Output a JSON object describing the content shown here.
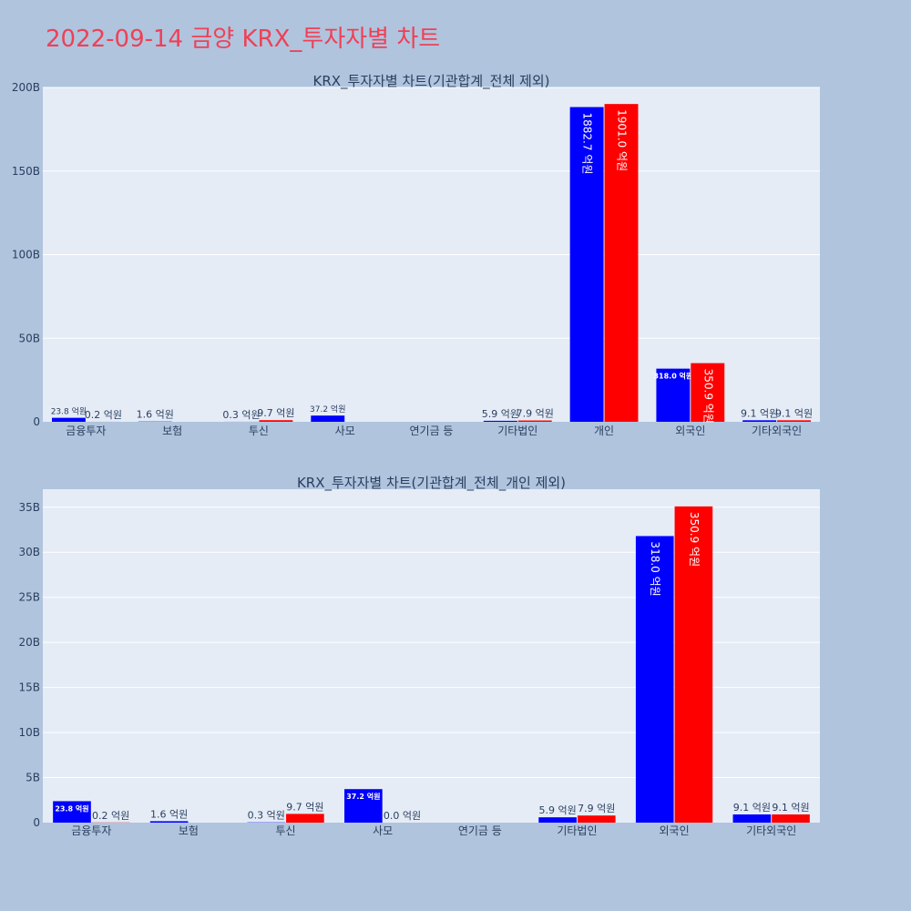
{
  "page": {
    "title": "2022-09-14 금양 KRX_투자자별 차트"
  },
  "colors": {
    "buy": "#0000ff",
    "sell": "#ff0000",
    "plot_bg": "#e5ecf6",
    "title": "#ef4056"
  },
  "chart_data": [
    {
      "type": "bar",
      "title": "KRX_투자자별 차트(기관합계_전체 제외)",
      "categories": [
        "금융투자",
        "보험",
        "투신",
        "사모",
        "연기금 등",
        "기타법인",
        "개인",
        "외국인",
        "기타외국인"
      ],
      "series": [
        {
          "color": "#0000ff",
          "values": [
            2.38,
            0.16,
            0.03,
            3.72,
            0,
            0.59,
            188.27,
            31.8,
            0.91
          ],
          "labels": [
            "23.8 억원",
            "1.6 억원",
            "0.3 억원",
            "37.2 억원",
            "",
            "5.9 억원",
            "1882.7 억원",
            "318.0 억원",
            "9.1 억원"
          ]
        },
        {
          "color": "#ff0000",
          "values": [
            0.02,
            0,
            0.97,
            0,
            0,
            0.79,
            190.1,
            35.09,
            0.91
          ],
          "labels": [
            "0.2 억원",
            "",
            "9.7 억원",
            "",
            "",
            "7.9 억원",
            "1901.0 억원",
            "350.9 억원",
            "9.1 억원"
          ]
        }
      ],
      "ylim": [
        0,
        200
      ],
      "yticks": [
        0,
        50,
        100,
        150,
        200
      ],
      "ytick_labels": [
        "0",
        "50B",
        "100B",
        "150B",
        "200B"
      ],
      "grid": true
    },
    {
      "type": "bar",
      "title": "KRX_투자자별 차트(기관합계_전체_개인 제외)",
      "categories": [
        "금융투자",
        "보험",
        "투신",
        "사모",
        "연기금 등",
        "기타법인",
        "외국인",
        "기타외국인"
      ],
      "series": [
        {
          "color": "#0000ff",
          "values": [
            2.38,
            0.16,
            0.03,
            3.72,
            0,
            0.59,
            31.8,
            0.91
          ],
          "labels": [
            "23.8 억원",
            "1.6 억원",
            "0.3 억원",
            "37.2 억원",
            "",
            "5.9 억원",
            "318.0 억원",
            "9.1 억원"
          ]
        },
        {
          "color": "#ff0000",
          "values": [
            0.02,
            0,
            0.97,
            0,
            0,
            0.79,
            35.09,
            0.91
          ],
          "labels": [
            "0.2 억원",
            "",
            "9.7 억원",
            "0.0 억원",
            "",
            "7.9 억원",
            "350.9 억원",
            "9.1 억원"
          ]
        }
      ],
      "ylim": [
        0,
        37
      ],
      "yticks": [
        0,
        5,
        10,
        15,
        20,
        25,
        30,
        35
      ],
      "ytick_labels": [
        "0",
        "5B",
        "10B",
        "15B",
        "20B",
        "25B",
        "30B",
        "35B"
      ],
      "grid": true
    }
  ]
}
